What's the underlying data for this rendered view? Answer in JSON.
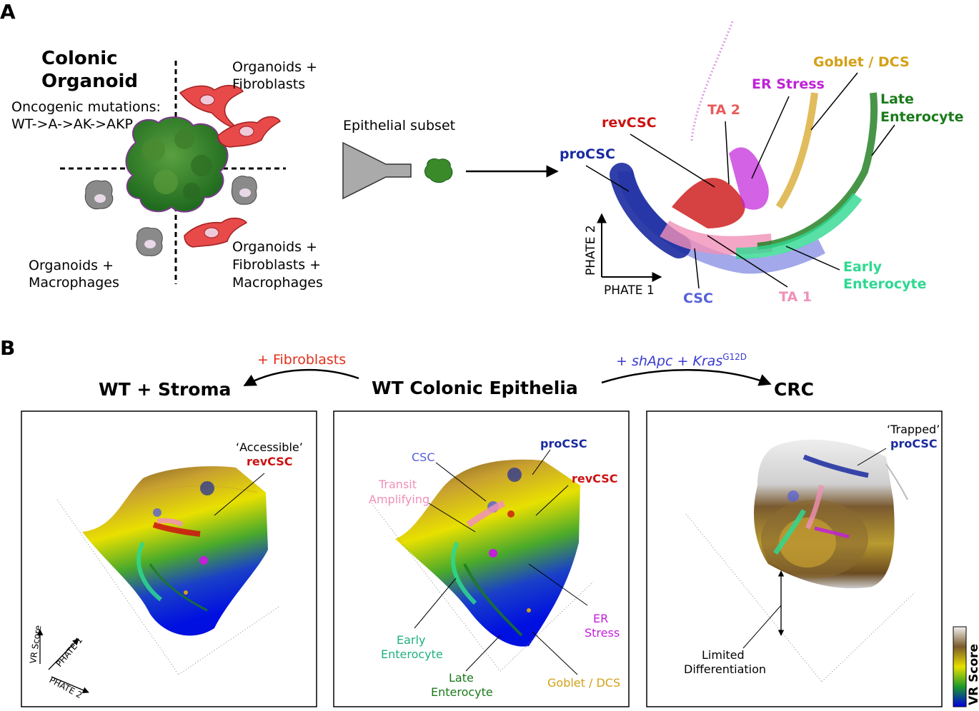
{
  "panel_a": {
    "letter": "A",
    "organoid_title_1": "Colonic",
    "organoid_title_2": "Organoid",
    "mutations_1": "Oncogenic mutations:",
    "mutations_2": "WT->A->AK->AKP",
    "quad_tr_1": "Organoids +",
    "quad_tr_2": "Fibroblasts",
    "quad_bl_1": "Organoids +",
    "quad_bl_2": "Macrophages",
    "quad_br_1": "Organoids +",
    "quad_br_2": "Fibroblasts +",
    "quad_br_3": "Macrophages",
    "funnel_label": "Epithelial subset",
    "axis_x": "PHATE 1",
    "axis_y": "PHATE 2",
    "clusters": {
      "procsc": "proCSC",
      "revcsc": "revCSC",
      "ta2": "TA 2",
      "er_stress": "ER Stress",
      "goblet": "Goblet / DCS",
      "late_1": "Late",
      "late_2": "Enterocyte",
      "early_1": "Early",
      "early_2": "Enterocyte",
      "csc": "CSC",
      "ta1": "TA 1"
    }
  },
  "panel_b": {
    "letter": "B",
    "arrow_left_label": "+ Fibroblasts",
    "arrow_right_label_1": "+ shApc + Kras",
    "arrow_right_sup": "G12D",
    "title_left": "WT + Stroma",
    "title_center": "WT Colonic Epithelia",
    "title_right": "CRC",
    "left_panel": {
      "accessible": "‘Accessible’",
      "revcsc": "revCSC",
      "axis_vr": "VR Score",
      "axis_p1": "PHATE 1",
      "axis_p2": "PHATE 2"
    },
    "center_panel": {
      "csc": "CSC",
      "procsc": "proCSC",
      "revcsc": "revCSC",
      "transit_1": "Transit",
      "transit_2": "Amplifying",
      "er_1": "ER",
      "er_2": "Stress",
      "early_1": "Early",
      "early_2": "Enterocyte",
      "late_1": "Late",
      "late_2": "Enterocyte",
      "goblet": "Goblet / DCS"
    },
    "right_panel": {
      "trapped": "‘Trapped’",
      "procsc": "proCSC",
      "limited_1": "Limited",
      "limited_2": "Differentiation"
    },
    "colorbar_label": "VR Score"
  },
  "colors": {
    "procsc": "#1a2aa0",
    "revcsc": "#cc1111",
    "ta2": "#e85a5a",
    "er_stress": "#c020d8",
    "goblet": "#d4a017",
    "late": "#1a7a1a",
    "early": "#2ed890",
    "csc": "#5560d8",
    "ta1": "#f090b8",
    "fibroblast_label": "#e0301a",
    "oncogene_label": "#3a3ad0"
  }
}
